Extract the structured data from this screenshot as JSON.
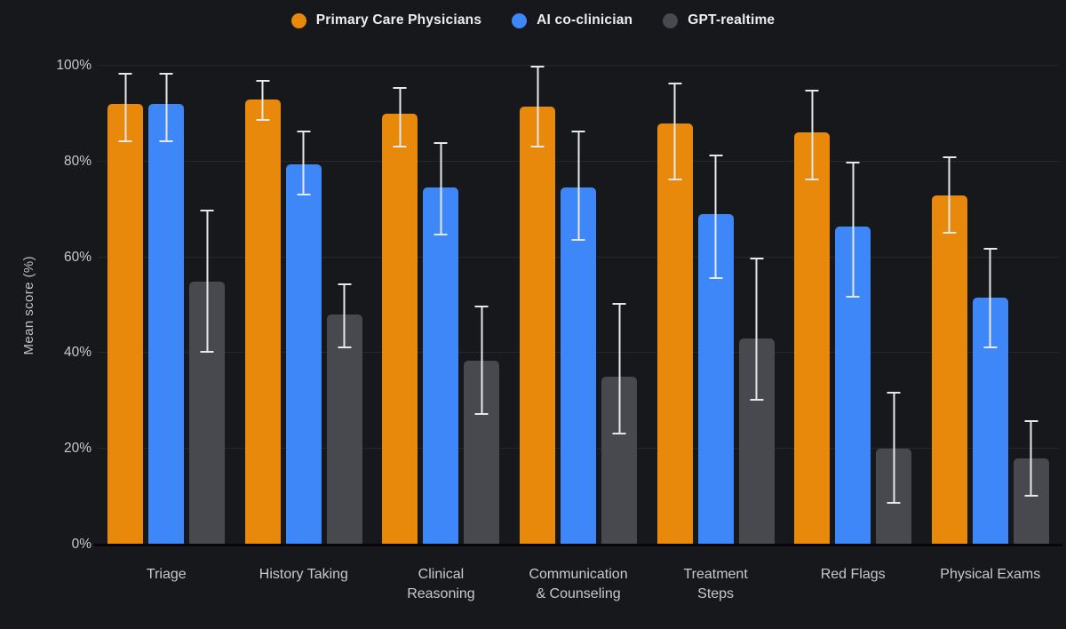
{
  "colors": {
    "background": "#17181b",
    "gridline": "#26282c",
    "axis_line": "#07070a",
    "error_bar": "#e7e8ea",
    "tick_text": "#c7c9ce",
    "legend_text": "#eceef1"
  },
  "legend": [
    {
      "label": "Primary Care Physicians",
      "color": "#e8890c"
    },
    {
      "label": "AI co-clinician",
      "color": "#3d87f8"
    },
    {
      "label": "GPT-realtime",
      "color": "#47494e"
    }
  ],
  "chart_data": {
    "type": "bar",
    "title": "",
    "xlabel": "",
    "ylabel": "Mean score (%)",
    "ylim": [
      0,
      100
    ],
    "yticks": [
      {
        "value": 0,
        "label": "0%"
      },
      {
        "value": 20,
        "label": "20%"
      },
      {
        "value": 40,
        "label": "40%"
      },
      {
        "value": 60,
        "label": "60%"
      },
      {
        "value": 80,
        "label": "80%"
      },
      {
        "value": 100,
        "label": "100%"
      }
    ],
    "grid": true,
    "legend_position": "top",
    "error_bars": true,
    "categories": [
      "Triage",
      "History Taking",
      "Clinical Reasoning",
      "Communication & Counseling",
      "Treatment Steps",
      "Red Flags",
      "Physical Exams"
    ],
    "category_lines": [
      [
        "Triage"
      ],
      [
        "History Taking"
      ],
      [
        "Clinical",
        "Reasoning"
      ],
      [
        "Communication",
        "& Counseling"
      ],
      [
        "Treatment",
        "Steps"
      ],
      [
        "Red Flags"
      ],
      [
        "Physical Exams"
      ]
    ],
    "series": [
      {
        "name": "Primary Care Physicians",
        "color": "#e8890c",
        "values": [
          92,
          93,
          90,
          91.5,
          88,
          86,
          73
        ],
        "error_low": [
          84,
          88.5,
          83,
          83,
          76,
          76,
          65
        ],
        "error_high": [
          98.5,
          97,
          95.5,
          100,
          96.5,
          95,
          81
        ]
      },
      {
        "name": "AI co-clinician",
        "color": "#3d87f8",
        "values": [
          92,
          79.5,
          74.5,
          74.5,
          69,
          66.5,
          51.5
        ],
        "error_low": [
          84,
          73,
          64.5,
          63.5,
          55.5,
          51.5,
          41
        ],
        "error_high": [
          98.5,
          86.5,
          84,
          86.5,
          81.5,
          80,
          62
        ]
      },
      {
        "name": "GPT-realtime",
        "color": "#47494e",
        "values": [
          55,
          48,
          38.5,
          35,
          43,
          20,
          18
        ],
        "error_low": [
          40,
          41,
          27,
          23,
          30,
          8.5,
          10
        ],
        "error_high": [
          70,
          54.5,
          50,
          50.5,
          60,
          32,
          26
        ]
      }
    ]
  }
}
